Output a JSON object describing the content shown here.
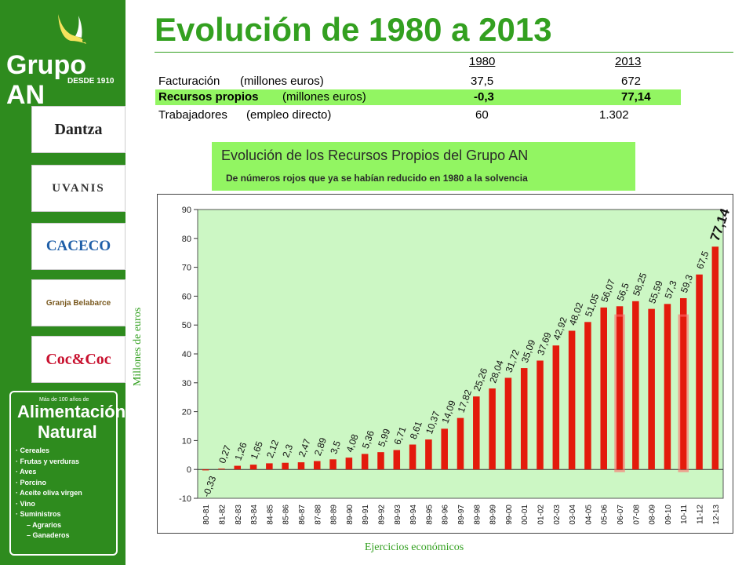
{
  "sidebar": {
    "brand_name": "Grupo AN",
    "brand_tagline": "DESDE 1910",
    "logos": [
      "Dantza",
      "UVANIS",
      "CACECO",
      "Granja Belabarce",
      "Coc&Coc"
    ],
    "alimentacion": {
      "small": "Más de 100 años de",
      "line1": "Alimentación",
      "line2": "Natural",
      "items": [
        "· Cereales",
        "· Frutas y verduras",
        "· Aves",
        "· Porcino",
        "· Aceite oliva virgen",
        "· Vino",
        "· Suministros",
        "– Agrarios",
        "– Ganaderos"
      ]
    },
    "colors": {
      "background": "#2e8b1e"
    }
  },
  "header": {
    "title": "Evolución de 1980 a 2013"
  },
  "kpi_table": {
    "col1": "1980",
    "col2": "2013",
    "rows": [
      {
        "label": "Facturación",
        "unit": "(millones euros)",
        "v1980": "37,5",
        "v2013": "672"
      },
      {
        "label": "Recursos propios",
        "unit": "(millones euros)",
        "v1980": "-0,3",
        "v2013": "77,14"
      },
      {
        "label": "Trabajadores",
        "unit": "(empleo directo)",
        "v1980": "60",
        "v2013": "1.302"
      }
    ]
  },
  "chart_header": {
    "title": "Evolución de los Recursos Propios del Grupo AN",
    "subtitle": "De números rojos que ya se habían reducido en 1980 a la solvencia"
  },
  "chart_data": {
    "type": "bar",
    "title": "Evolución de los Recursos Propios del Grupo AN",
    "xlabel": "Ejercicios económicos",
    "ylabel": "Millones de euros",
    "ylim": [
      -10,
      90
    ],
    "yticks": [
      -10,
      0,
      10,
      20,
      30,
      40,
      50,
      60,
      70,
      80,
      90
    ],
    "grid": false,
    "bar_color": "#e31b0c",
    "plot_background": "#ccf7c4",
    "categories": [
      "80-81",
      "81-82",
      "82-83",
      "83-84",
      "84-85",
      "85-86",
      "86-87",
      "87-88",
      "88-89",
      "89-90",
      "89-91",
      "89-92",
      "89-93",
      "89-94",
      "89-95",
      "89-96",
      "89-97",
      "89-98",
      "89-99",
      "99-00",
      "00-01",
      "01-02",
      "02-03",
      "03-04",
      "04-05",
      "05-06",
      "06-07",
      "07-08",
      "08-09",
      "09-10",
      "10-11",
      "11-12",
      "12-13"
    ],
    "values": [
      -0.33,
      0.27,
      1.26,
      1.65,
      2.12,
      2.3,
      2.47,
      2.89,
      3.5,
      4.08,
      5.36,
      5.99,
      6.71,
      8.61,
      10.37,
      14.09,
      17.82,
      25.26,
      28.04,
      31.72,
      35.09,
      37.69,
      42.92,
      48.02,
      51.05,
      56.07,
      56.5,
      58.25,
      55.59,
      57.3,
      59.3,
      67.5,
      77.14
    ],
    "data_labels": [
      "-0,33",
      "0,27",
      "1,26",
      "1,65",
      "2,12",
      "2,3",
      "2,47",
      "2,89",
      "3,5",
      "4,08",
      "5,36",
      "5,99",
      "6,71",
      "8,61",
      "10,37",
      "14,09",
      "17,82",
      "25,26",
      "28,04",
      "31,72",
      "35,09",
      "37,69",
      "42,92",
      "48,02",
      "51,05",
      "56,07",
      "56,5",
      "58,25",
      "55,59",
      "57,3",
      "59,3",
      "67,5",
      "77,14"
    ],
    "highlighted": [
      26,
      30
    ]
  }
}
